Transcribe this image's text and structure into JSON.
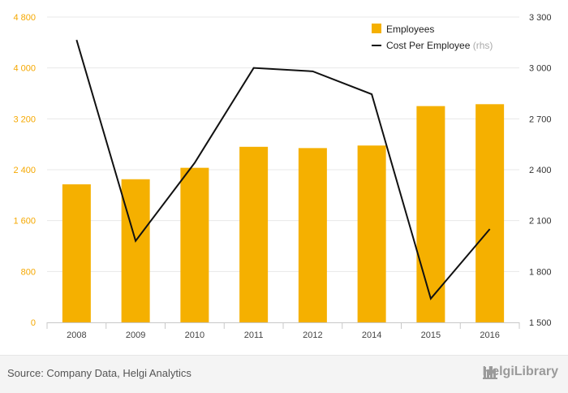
{
  "chart_data": {
    "type": "bar+line",
    "categories": [
      "2008",
      "2009",
      "2010",
      "2011",
      "2012",
      "2014",
      "2015",
      "2016"
    ],
    "series": [
      {
        "name": "Employees",
        "type": "bar",
        "axis": "left",
        "color": "#f5b000",
        "values": [
          2170,
          2250,
          2430,
          2760,
          2740,
          2780,
          3400,
          3430
        ]
      },
      {
        "name": "Cost Per Employee",
        "type": "line",
        "axis": "right",
        "color": "#111111",
        "values": [
          3165,
          1980,
          2440,
          3000,
          2980,
          2845,
          1640,
          2050
        ]
      }
    ],
    "y_left": {
      "min": 0,
      "max": 4800,
      "ticks": [
        "0",
        "800",
        "1 600",
        "2 400",
        "3 200",
        "4 000",
        "4 800"
      ]
    },
    "y_right": {
      "min": 1500,
      "max": 3300,
      "ticks": [
        "1 500",
        "1 800",
        "2 100",
        "2 400",
        "2 700",
        "3 000",
        "3 300"
      ]
    },
    "legend": [
      {
        "label": "Employees",
        "suffix": ""
      },
      {
        "label": "Cost Per Employee",
        "suffix": "(rhs)"
      }
    ],
    "grid": true,
    "legend_position": "top-right"
  },
  "footer": {
    "source": "Source: Company Data, Helgi Analytics",
    "brand": "HelgiLibrary"
  },
  "colors": {
    "bar": "#f5b000",
    "line": "#111111",
    "left_axis_text": "#f5a800",
    "right_axis_text": "#333333"
  }
}
